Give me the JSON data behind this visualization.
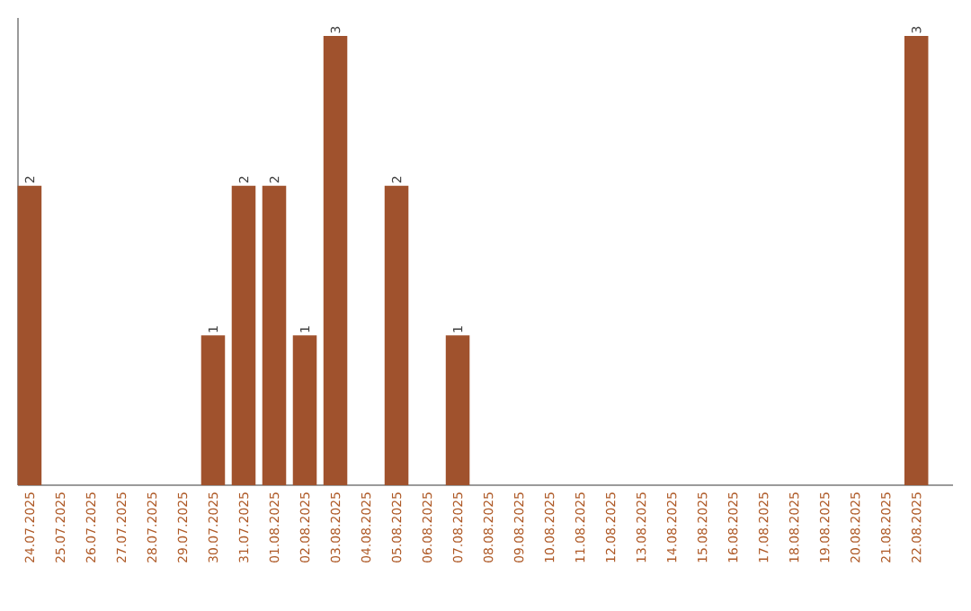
{
  "chart_data": {
    "type": "bar",
    "categories": [
      "24.07.2025",
      "25.07.2025",
      "26.07.2025",
      "27.07.2025",
      "28.07.2025",
      "29.07.2025",
      "30.07.2025",
      "31.07.2025",
      "01.08.2025",
      "02.08.2025",
      "03.08.2025",
      "04.08.2025",
      "05.08.2025",
      "06.08.2025",
      "07.08.2025",
      "08.08.2025",
      "09.08.2025",
      "10.08.2025",
      "11.08.2025",
      "12.08.2025",
      "13.08.2025",
      "14.08.2025",
      "15.08.2025",
      "16.08.2025",
      "17.08.2025",
      "18.08.2025",
      "19.08.2025",
      "20.08.2025",
      "21.08.2025",
      "22.08.2025"
    ],
    "values": [
      2,
      null,
      null,
      null,
      null,
      null,
      1,
      2,
      2,
      1,
      3,
      null,
      2,
      null,
      1,
      null,
      null,
      null,
      null,
      null,
      null,
      null,
      null,
      null,
      null,
      null,
      null,
      null,
      null,
      3
    ],
    "color": "#a0522d",
    "data_labels": true
  }
}
